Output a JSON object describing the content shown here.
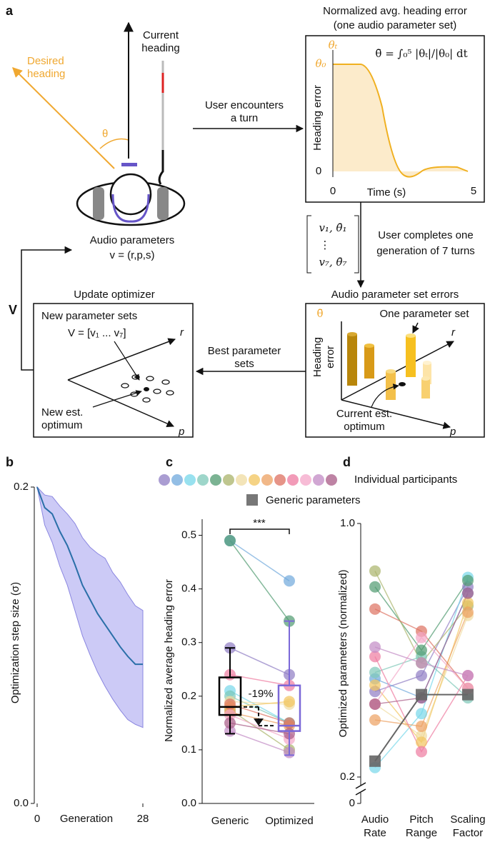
{
  "diagram": {
    "panel": "a",
    "desired_heading": [
      "Desired",
      "heading"
    ],
    "theta": "θ",
    "current_heading": [
      "Current",
      "heading"
    ],
    "audio_parameters": "Audio parameters",
    "audio_vector": "v = (r,p,s)",
    "encounter": [
      "User encounters",
      "a turn"
    ],
    "inset_title": [
      "Normalized avg. heading error",
      "(one audio parameter set)"
    ],
    "theta_t": "θₜ",
    "theta_0": "θ₀",
    "formula": "θ̄ = ∫₀⁵ |θₜ|/|θ₀| dt",
    "inset_ylabel": "Heading error",
    "inset_yticks": [
      "0"
    ],
    "inset_xticks": [
      "0",
      "5"
    ],
    "inset_xlabel": "Time (s)",
    "matrix": [
      "v₁, θ̄₁",
      "⋮",
      "v₇, θ̄₇"
    ],
    "generation": [
      "User completes one",
      "generation of 7 turns"
    ],
    "errors_title": "Audio parameter set errors",
    "errors_theta": "θ̄",
    "one_set": "One parameter set",
    "errors_ylabel": [
      "Heading",
      "error"
    ],
    "current_optimum": [
      "Current est.",
      "optimum"
    ],
    "axis_r": "r",
    "axis_p": "p",
    "best_sets": [
      "Best parameter",
      "sets"
    ],
    "update_title": "Update optimizer",
    "new_sets": "New parameter sets",
    "new_vector": "V = [v₁ ... v₇]",
    "new_optimum": [
      "New est.",
      "optimum"
    ],
    "loop_label": "V"
  },
  "chart_data": [
    {
      "type": "line",
      "panel": "b",
      "xlabel": "Generation",
      "ylabel": "Optimization step size (σ)",
      "x": [
        0,
        2,
        4,
        6,
        8,
        10,
        12,
        14,
        16,
        18,
        20,
        22,
        24,
        26,
        28
      ],
      "series": [
        {
          "color": "#2a6fa8",
          "band_color": "#aaa6f0",
          "values": [
            0.2,
            0.187,
            0.183,
            0.172,
            0.163,
            0.151,
            0.138,
            0.129,
            0.12,
            0.113,
            0.106,
            0.099,
            0.093,
            0.088,
            0.088
          ],
          "band_lower": [
            0.2,
            0.176,
            0.165,
            0.15,
            0.138,
            0.122,
            0.106,
            0.094,
            0.083,
            0.074,
            0.066,
            0.059,
            0.053,
            0.05,
            0.048
          ],
          "band_upper": [
            0.2,
            0.195,
            0.194,
            0.188,
            0.183,
            0.177,
            0.168,
            0.162,
            0.158,
            0.155,
            0.146,
            0.14,
            0.132,
            0.125,
            0.122
          ]
        }
      ],
      "xlim": [
        0,
        28
      ],
      "ylim": [
        0,
        0.2
      ],
      "xticks": [
        0,
        28
      ],
      "yticks": [
        {
          "value": 0,
          "label": "0.0"
        },
        0.2
      ]
    },
    {
      "type": "box",
      "panel": "c",
      "ylabel": "Normalized average heading error",
      "categories": [
        "Generic",
        "Optimized"
      ],
      "series": [
        {
          "color": "#8e7cc3",
          "values": [
            0.29,
            0.24
          ]
        },
        {
          "color": "#6fa8dc",
          "values": [
            0.49,
            0.415
          ]
        },
        {
          "color": "#76d7ea",
          "values": [
            0.21,
            0.15
          ]
        },
        {
          "color": "#7ec8b8",
          "values": [
            0.2,
            0.15
          ]
        },
        {
          "color": "#4f9a6f",
          "values": [
            0.49,
            0.34
          ]
        },
        {
          "color": "#a9b36a",
          "values": [
            0.175,
            0.1
          ]
        },
        {
          "color": "#efdba0",
          "values": [
            0.19,
            0.185
          ]
        },
        {
          "color": "#f2c45c",
          "values": [
            0.18,
            0.19
          ]
        },
        {
          "color": "#eca060",
          "values": [
            0.17,
            0.145
          ]
        },
        {
          "color": "#dd7060",
          "values": [
            0.185,
            0.15
          ]
        },
        {
          "color": "#ee7aa0",
          "values": [
            0.24,
            0.22
          ]
        },
        {
          "color": "#f4a6c8",
          "values": [
            0.165,
            0.12
          ]
        },
        {
          "color": "#c28ac4",
          "values": [
            0.135,
            0.095
          ]
        },
        {
          "color": "#a85a86",
          "values": [
            0.15,
            0.13
          ]
        }
      ],
      "boxes": [
        {
          "color": "#000000",
          "whisker_low": 0.13,
          "q1": 0.165,
          "median": 0.18,
          "q3": 0.235,
          "whisker_high": 0.29
        },
        {
          "color": "#7b68d8",
          "whisker_low": 0.09,
          "q1": 0.135,
          "median": 0.145,
          "q3": 0.22,
          "whisker_high": 0.34
        }
      ],
      "legend": {
        "participants": "Individual participants",
        "generic": "Generic parameters"
      },
      "generic_color": "#777777",
      "significance": "***",
      "change_label": "-19%",
      "ylim": [
        0,
        0.53
      ],
      "yticks": [
        {
          "value": 0,
          "label": "0.0"
        },
        0.1,
        0.2,
        0.3,
        0.4,
        0.5
      ]
    },
    {
      "type": "parallel",
      "panel": "d",
      "ylabel": "Optimized parameters (normalized)",
      "categories": [
        [
          "Audio",
          "Rate"
        ],
        [
          "Pitch",
          "Range"
        ],
        [
          "Scaling",
          "Factor"
        ]
      ],
      "series": [
        {
          "color": "#8e7cc3",
          "values": [
            0.47,
            0.52,
            0.8
          ]
        },
        {
          "color": "#6fa8dc",
          "values": [
            0.51,
            0.45,
            0.78
          ]
        },
        {
          "color": "#76d7ea",
          "values": [
            0.23,
            0.4,
            0.83
          ]
        },
        {
          "color": "#7ec8b8",
          "values": [
            0.53,
            0.58,
            0.45
          ]
        },
        {
          "color": "#4f9a6f",
          "values": [
            0.8,
            0.6,
            0.82
          ]
        },
        {
          "color": "#a9b36a",
          "values": [
            0.85,
            0.56,
            0.74
          ]
        },
        {
          "color": "#efdba0",
          "values": [
            0.43,
            0.33,
            0.71
          ]
        },
        {
          "color": "#f2c45c",
          "values": [
            0.49,
            0.31,
            0.75
          ]
        },
        {
          "color": "#eca060",
          "values": [
            0.38,
            0.36,
            0.72
          ]
        },
        {
          "color": "#dd7060",
          "values": [
            0.73,
            0.66,
            0.48
          ]
        },
        {
          "color": "#ee7aa0",
          "values": [
            0.58,
            0.28,
            0.52
          ]
        },
        {
          "color": "#f4a6c8",
          "values": [
            0.43,
            0.64,
            0.48
          ]
        },
        {
          "color": "#c28ac4",
          "values": [
            0.61,
            0.56,
            0.52
          ]
        },
        {
          "color": "#a85a86",
          "values": [
            0.43,
            0.45,
            0.78
          ]
        }
      ],
      "generic": {
        "color": "#666666",
        "values": [
          0.25,
          0.46,
          0.46
        ]
      },
      "ylim": [
        0.2,
        1.0
      ],
      "yticks": [
        0,
        0.2,
        {
          "value": 1.0,
          "label": "1.0"
        }
      ]
    }
  ]
}
